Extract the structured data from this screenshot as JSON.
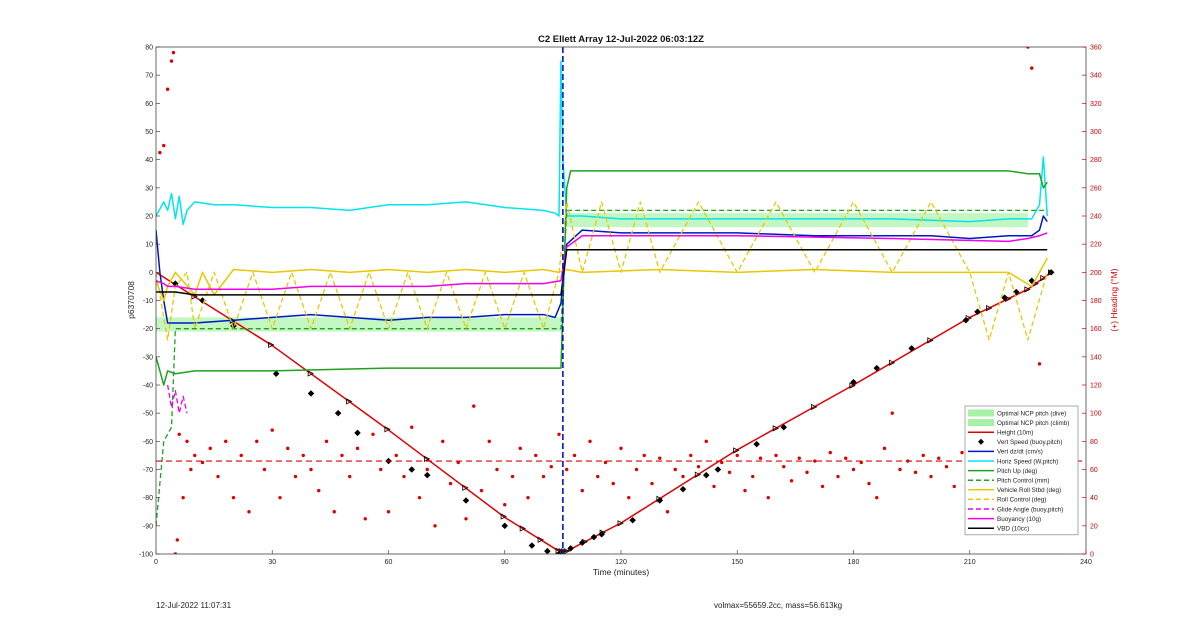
{
  "chart_data": {
    "type": "line",
    "title": "C2 Ellett Array 12-Jul-2022 06:03:12Z",
    "xlabel": "Time (minutes)",
    "ylabel": "p6370708",
    "y2label": "(+) Heading (°M)",
    "xlim": [
      0,
      240
    ],
    "ylim": [
      -100,
      80
    ],
    "y2lim": [
      0,
      360
    ],
    "xticks": [
      0,
      30,
      60,
      90,
      120,
      150,
      180,
      210,
      240
    ],
    "yticks": [
      -100,
      -90,
      -80,
      -70,
      -60,
      -50,
      -40,
      -30,
      -20,
      -10,
      0,
      10,
      20,
      30,
      40,
      50,
      60,
      70,
      80
    ],
    "y2ticks": [
      0,
      20,
      40,
      60,
      80,
      100,
      120,
      140,
      160,
      180,
      200,
      220,
      240,
      260,
      280,
      300,
      320,
      340,
      360
    ],
    "grid": false,
    "legend_position": "bottom-right",
    "apogee_time": 105,
    "heading_reference": 66,
    "bands": [
      {
        "name": "Optimal NCP pitch (dive)",
        "color": "#90ee90",
        "x": [
          0,
          104.5
        ],
        "y_low": [
          -21,
          -21
        ],
        "y_high": [
          -16,
          -16
        ]
      },
      {
        "name": "Optimal NCP pitch (climb)",
        "color": "#90ee90",
        "x": [
          106,
          225
        ],
        "y_low": [
          16,
          16
        ],
        "y_high": [
          21,
          21
        ]
      }
    ],
    "series": [
      {
        "name": "Height (10m)",
        "color": "#e00000",
        "style": "solid",
        "marker": "triangle",
        "x": [
          0,
          30,
          60,
          90,
          104,
          106,
          120,
          150,
          180,
          210,
          225,
          231
        ],
        "y": [
          0,
          -26,
          -56,
          -87,
          -99,
          -99,
          -89,
          -63,
          -40,
          -16,
          -6,
          0
        ]
      },
      {
        "name": "Vert Speed (buoy,pitch)",
        "color": "#000000",
        "style": "markers",
        "marker": "diamond",
        "x": [
          5,
          12,
          20,
          31,
          40,
          47,
          52,
          60,
          66,
          70,
          80,
          90,
          97,
          101,
          104,
          107,
          110,
          113,
          115,
          123,
          130,
          136,
          142,
          145,
          155,
          162,
          180,
          186,
          195,
          209,
          212,
          219,
          222,
          226,
          231
        ],
        "y": [
          -4,
          -10,
          -19,
          -36,
          -43,
          -50,
          -57,
          -67,
          -70,
          -72,
          -81,
          -90,
          -97,
          -99,
          -100,
          -98,
          -96,
          -94,
          -93,
          -88,
          -81,
          -77,
          -72,
          -70,
          -61,
          -55,
          -39,
          -34,
          -27,
          -17,
          -14,
          -9,
          -7,
          -3,
          0
        ]
      },
      {
        "name": "Vert dz/dt (cm/s)",
        "color": "#0018c0",
        "style": "solid",
        "x": [
          0,
          1,
          2,
          3,
          5,
          10,
          20,
          30,
          40,
          50,
          60,
          70,
          80,
          90,
          100,
          103,
          104.5,
          106,
          110,
          120,
          130,
          150,
          170,
          180,
          200,
          210,
          220,
          226,
          228,
          229,
          230
        ],
        "y": [
          15,
          0,
          -10,
          -18,
          -18,
          -18,
          -17,
          -16,
          -15,
          -16,
          -17,
          -16,
          -16,
          -15,
          -15,
          -16,
          -11,
          10,
          15,
          14,
          14,
          14,
          13,
          13,
          13,
          12,
          13,
          13,
          15,
          20,
          18
        ]
      },
      {
        "name": "Horiz Speed (W,pitch)",
        "color": "#00e5ee",
        "style": "solid",
        "x": [
          0,
          2,
          3,
          4,
          5,
          6,
          7,
          8,
          10,
          15,
          20,
          30,
          40,
          50,
          60,
          70,
          80,
          90,
          100,
          103,
          104,
          104.5,
          105,
          106,
          110,
          120,
          130,
          150,
          170,
          190,
          210,
          220,
          226,
          228,
          229,
          230
        ],
        "y": [
          20,
          25,
          22,
          28,
          19,
          27,
          17,
          22,
          25,
          24,
          24,
          23,
          23,
          22,
          24,
          24,
          25,
          23,
          22,
          21,
          20,
          75,
          40,
          20,
          20,
          19,
          19,
          19,
          19,
          19,
          18,
          19,
          19,
          24,
          41,
          20
        ]
      },
      {
        "name": "Pitch Up (deg)",
        "color": "#1fa01f",
        "style": "solid",
        "x": [
          0,
          1,
          2,
          3,
          5,
          10,
          30,
          60,
          90,
          100,
          104.5,
          106,
          107,
          110,
          150,
          190,
          220,
          225,
          228,
          229,
          230
        ],
        "y": [
          -30,
          -35,
          -40,
          -35,
          -36,
          -35,
          -35,
          -34,
          -34,
          -34,
          -34,
          30,
          36,
          36,
          36,
          36,
          36,
          35,
          35,
          30,
          32
        ]
      },
      {
        "name": "Pitch Control (mm)",
        "color": "#1fa01f",
        "style": "dashed",
        "x": [
          0,
          2,
          4,
          5,
          104.5,
          106,
          225,
          230
        ],
        "y": [
          -90,
          -60,
          -55,
          -20,
          -20,
          22,
          22,
          22
        ]
      },
      {
        "name": "Vehicle Roll Stbd (deg)",
        "color": "#e8c800",
        "style": "solid",
        "x": [
          0,
          2,
          3,
          5,
          10,
          12,
          15,
          20,
          30,
          40,
          50,
          60,
          70,
          80,
          90,
          100,
          104,
          106,
          110,
          130,
          150,
          170,
          190,
          210,
          220,
          226,
          230
        ],
        "y": [
          -3,
          -10,
          -5,
          0,
          -8,
          0,
          -8,
          1,
          0,
          1,
          0,
          1,
          0,
          1,
          0,
          1,
          0,
          1,
          0,
          1,
          0,
          1,
          0,
          0,
          0,
          -5,
          5
        ]
      },
      {
        "name": "Roll Control (deg)",
        "color": "#e8c800",
        "style": "dashed",
        "x": [
          0,
          3,
          5,
          8,
          10,
          15,
          20,
          25,
          30,
          35,
          40,
          45,
          50,
          55,
          60,
          65,
          70,
          75,
          80,
          85,
          90,
          95,
          100,
          104,
          106,
          110,
          115,
          120,
          125,
          130,
          140,
          150,
          160,
          170,
          180,
          190,
          200,
          210,
          215,
          220,
          225,
          230
        ],
        "y": [
          0,
          -24,
          -5,
          0,
          -20,
          0,
          -20,
          0,
          -20,
          0,
          -20,
          0,
          -20,
          0,
          -20,
          0,
          -20,
          0,
          -20,
          0,
          -20,
          0,
          -20,
          0,
          25,
          0,
          25,
          0,
          25,
          0,
          25,
          0,
          25,
          0,
          25,
          0,
          25,
          0,
          -24,
          0,
          -24,
          0
        ]
      },
      {
        "name": "Glide Angle (buoy,pitch)",
        "color": "#ee00ee",
        "style": "dashed",
        "x": [
          3,
          4,
          5,
          6,
          7,
          8
        ],
        "y": [
          -40,
          -48,
          -42,
          -50,
          -44,
          -50
        ]
      },
      {
        "name": "Buoyancy (10g)",
        "color": "#ee00ee",
        "style": "solid",
        "x": [
          0,
          2,
          3,
          5,
          10,
          20,
          30,
          40,
          50,
          60,
          70,
          80,
          90,
          100,
          104.5,
          106,
          110,
          150,
          190,
          220,
          225,
          228,
          230
        ],
        "y": [
          -3,
          -4,
          -5,
          -5,
          -6,
          -6,
          -6,
          -5,
          -5,
          -5,
          -5,
          -4,
          -4,
          -4,
          -3,
          9,
          13,
          13,
          12,
          11,
          12,
          13,
          14
        ]
      },
      {
        "name": "VBD (10cc)",
        "color": "#000000",
        "style": "solid",
        "x": [
          0,
          3,
          5,
          10,
          50,
          100,
          104.5,
          106,
          110,
          150,
          190,
          220,
          225,
          226,
          230
        ],
        "y": [
          -7,
          -7,
          -7,
          -8,
          -8,
          -8,
          -8,
          8,
          8,
          8,
          8,
          8,
          8,
          8,
          8
        ]
      }
    ],
    "heading_series": {
      "name": "(+) Heading (°M)",
      "color": "#e00000",
      "axis": "right",
      "style": "dots",
      "t": [
        1,
        2,
        3,
        4,
        4.5,
        5,
        5.5,
        6,
        7,
        8,
        9,
        10,
        12,
        14,
        16,
        18,
        20,
        22,
        24,
        26,
        28,
        30,
        32,
        34,
        36,
        38,
        40,
        42,
        44,
        46,
        48,
        50,
        52,
        54,
        56,
        58,
        60,
        62,
        64,
        66,
        68,
        70,
        72,
        74,
        76,
        78,
        80,
        82,
        84,
        86,
        88,
        90,
        92,
        94,
        96,
        98,
        100,
        102,
        104,
        106,
        108,
        110,
        112,
        114,
        116,
        118,
        120,
        122,
        124,
        126,
        128,
        130,
        132,
        134,
        136,
        138,
        140,
        142,
        144,
        146,
        148,
        150,
        152,
        154,
        156,
        158,
        160,
        162,
        164,
        166,
        168,
        170,
        172,
        174,
        176,
        178,
        180,
        182,
        184,
        186,
        188,
        190,
        192,
        194,
        196,
        198,
        200,
        202,
        204,
        206,
        208,
        210,
        212,
        214,
        216,
        218,
        220,
        222,
        223,
        224,
        225,
        226,
        227,
        228,
        229,
        230
      ],
      "h": [
        285,
        290,
        330,
        350,
        356,
        0,
        10,
        85,
        40,
        80,
        60,
        70,
        65,
        75,
        55,
        80,
        40,
        70,
        30,
        80,
        60,
        88,
        40,
        75,
        55,
        70,
        60,
        45,
        80,
        30,
        70,
        55,
        75,
        25,
        85,
        60,
        30,
        70,
        55,
        90,
        40,
        60,
        20,
        80,
        50,
        65,
        25,
        105,
        45,
        80,
        60,
        35,
        55,
        75,
        40,
        70,
        55,
        62,
        85,
        60,
        70,
        45,
        80,
        55,
        65,
        50,
        75,
        40,
        60,
        70,
        50,
        68,
        30,
        60,
        55,
        70,
        62,
        80,
        48,
        65,
        58,
        70,
        45,
        55,
        68,
        40,
        70,
        62,
        52,
        68,
        58,
        66,
        48,
        72,
        55,
        68,
        60,
        65,
        50,
        40,
        75,
        100,
        60,
        66,
        58,
        70,
        55,
        68,
        62,
        48,
        72,
        55,
        70,
        60,
        66,
        64,
        58,
        62,
        70,
        80,
        360,
        345,
        60,
        135,
        100,
        80
      ]
    }
  },
  "footer": {
    "timestamp": "12-Jul-2022 11:07:31",
    "volume": "volmax=55659.2cc, mass=56.613kg"
  }
}
